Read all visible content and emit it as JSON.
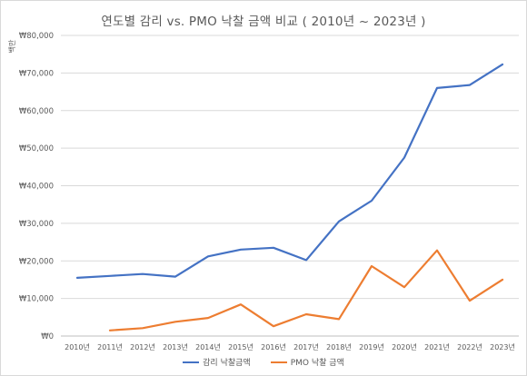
{
  "chart_data": {
    "type": "line",
    "title": "연도별 감리 vs. PMO 낙찰 금액 비교 ( 2010년 ~ 2023년 )",
    "ylabel": "백만",
    "xlabel": "",
    "categories": [
      "2010년",
      "2011년",
      "2012년",
      "2013년",
      "2014년",
      "2015년",
      "2016년",
      "2017년",
      "2018년",
      "2019년",
      "2020년",
      "2021년",
      "2022년",
      "2023년"
    ],
    "ylim": [
      0,
      80000
    ],
    "y_ticks": [
      0,
      10000,
      20000,
      30000,
      40000,
      50000,
      60000,
      70000,
      80000
    ],
    "y_tick_labels": [
      "₩0",
      "₩10,000",
      "₩20,000",
      "₩30,000",
      "₩40,000",
      "₩50,000",
      "₩60,000",
      "₩70,000",
      "₩80,000"
    ],
    "grid": true,
    "legend_position": "bottom",
    "series": [
      {
        "name": "감리 낙찰금액",
        "color": "#4472C4",
        "values": [
          15500,
          16000,
          16500,
          15800,
          21200,
          23000,
          23500,
          20200,
          30500,
          36000,
          47500,
          66000,
          66800,
          72300
        ]
      },
      {
        "name": "PMO 낙찰 금액",
        "color": "#ED7D31",
        "values": [
          null,
          1500,
          2100,
          3800,
          4800,
          8400,
          2600,
          5800,
          4500,
          18600,
          13000,
          22800,
          9400,
          15000
        ]
      }
    ]
  }
}
